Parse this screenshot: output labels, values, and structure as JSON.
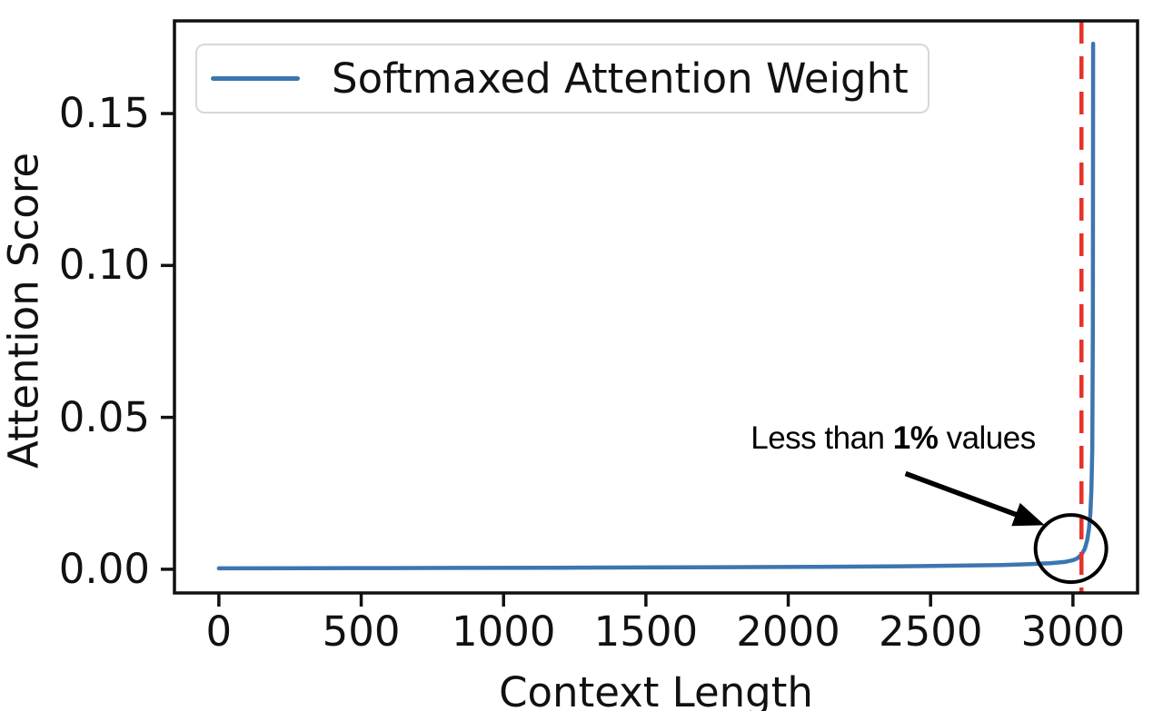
{
  "figure": {
    "legend": {
      "label": "Softmaxed Attention Weight"
    },
    "axes": {
      "xlabel": "Context Length",
      "ylabel": "Attention Score"
    },
    "annotation": {
      "prefix": "Less than ",
      "bold": "1%",
      "suffix": " values"
    }
  },
  "chart_data": {
    "type": "line",
    "title": "",
    "xlabel": "Context Length",
    "ylabel": "Attention Score",
    "legend_entries": [
      "Softmaxed Attention Weight"
    ],
    "legend_position": "upper left",
    "grid": false,
    "xlim": [
      -156,
      3227
    ],
    "ylim": [
      -0.0078,
      0.1805
    ],
    "x_ticks": [
      0,
      500,
      1000,
      1500,
      2000,
      2500,
      3000
    ],
    "x_tick_labels": [
      "0",
      "500",
      "1000",
      "1500",
      "2000",
      "2500",
      "3000"
    ],
    "y_ticks": [
      0,
      0.05,
      0.1,
      0.15
    ],
    "y_tick_labels": [
      "0.00",
      "0.05",
      "0.10",
      "0.15"
    ],
    "colors": {
      "line": "#3c76b0",
      "vline": "#e5332a",
      "spine": "#111111",
      "annotation": "#000000"
    },
    "series": [
      {
        "name": "Softmaxed Attention Weight",
        "color": "#3c76b0",
        "x": [
          0,
          300,
          600,
          900,
          1200,
          1500,
          1800,
          2100,
          2400,
          2600,
          2750,
          2850,
          2920,
          2970,
          3000,
          3015,
          3030,
          3042,
          3050,
          3056,
          3061,
          3065,
          3068,
          3070,
          3071
        ],
        "y": [
          0.0003,
          0.00035,
          0.0004,
          0.00045,
          0.0005,
          0.0006,
          0.0007,
          0.0008,
          0.001,
          0.0012,
          0.0014,
          0.0017,
          0.002,
          0.0024,
          0.003,
          0.0036,
          0.0048,
          0.0068,
          0.0095,
          0.013,
          0.018,
          0.026,
          0.04,
          0.08,
          0.173
        ]
      }
    ],
    "vline": {
      "x": 3030,
      "color": "#e5332a",
      "style": "dashed"
    },
    "annotations": {
      "text": {
        "x": 2368,
        "y": 0.0428,
        "content": "Less than 1% values",
        "bold_part": "1%"
      },
      "arrow": {
        "from": [
          2412,
          0.0315
        ],
        "to": [
          2901,
          0.0145
        ]
      },
      "circle": {
        "x": 2993,
        "y": 0.0068,
        "radius_px": 38
      }
    }
  }
}
